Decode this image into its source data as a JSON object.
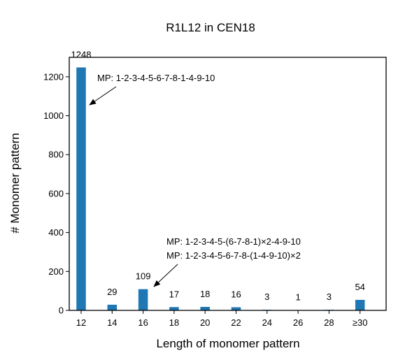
{
  "chart_data": {
    "type": "bar",
    "title": "R1L12 in CEN18",
    "xlabel": "Length of monomer pattern",
    "ylabel": "# Monomer pattern",
    "categories": [
      "12",
      "14",
      "16",
      "18",
      "20",
      "22",
      "24",
      "26",
      "28",
      "≥30"
    ],
    "values": [
      1248,
      29,
      109,
      17,
      18,
      16,
      3,
      1,
      3,
      54
    ],
    "data_labels": [
      "1248",
      "29",
      "109",
      "17",
      "18",
      "16",
      "3",
      "1",
      "3",
      "54"
    ],
    "yticks": [
      0,
      200,
      400,
      600,
      800,
      1000,
      1200
    ],
    "ylim": [
      0,
      1300
    ],
    "bar_color": "#1f77b4",
    "grid": false,
    "annotations": [
      {
        "text": "MP: 1-2-3-4-5-6-7-8-1-4-9-10",
        "points_to": "12"
      },
      {
        "text": "MP: 1-2-3-4-5-(6-7-8-1)×2-4-9-10",
        "points_to": "16"
      },
      {
        "text": "MP: 1-2-3-4-5-6-7-8-(1-4-9-10)×2",
        "points_to": "16"
      }
    ]
  }
}
